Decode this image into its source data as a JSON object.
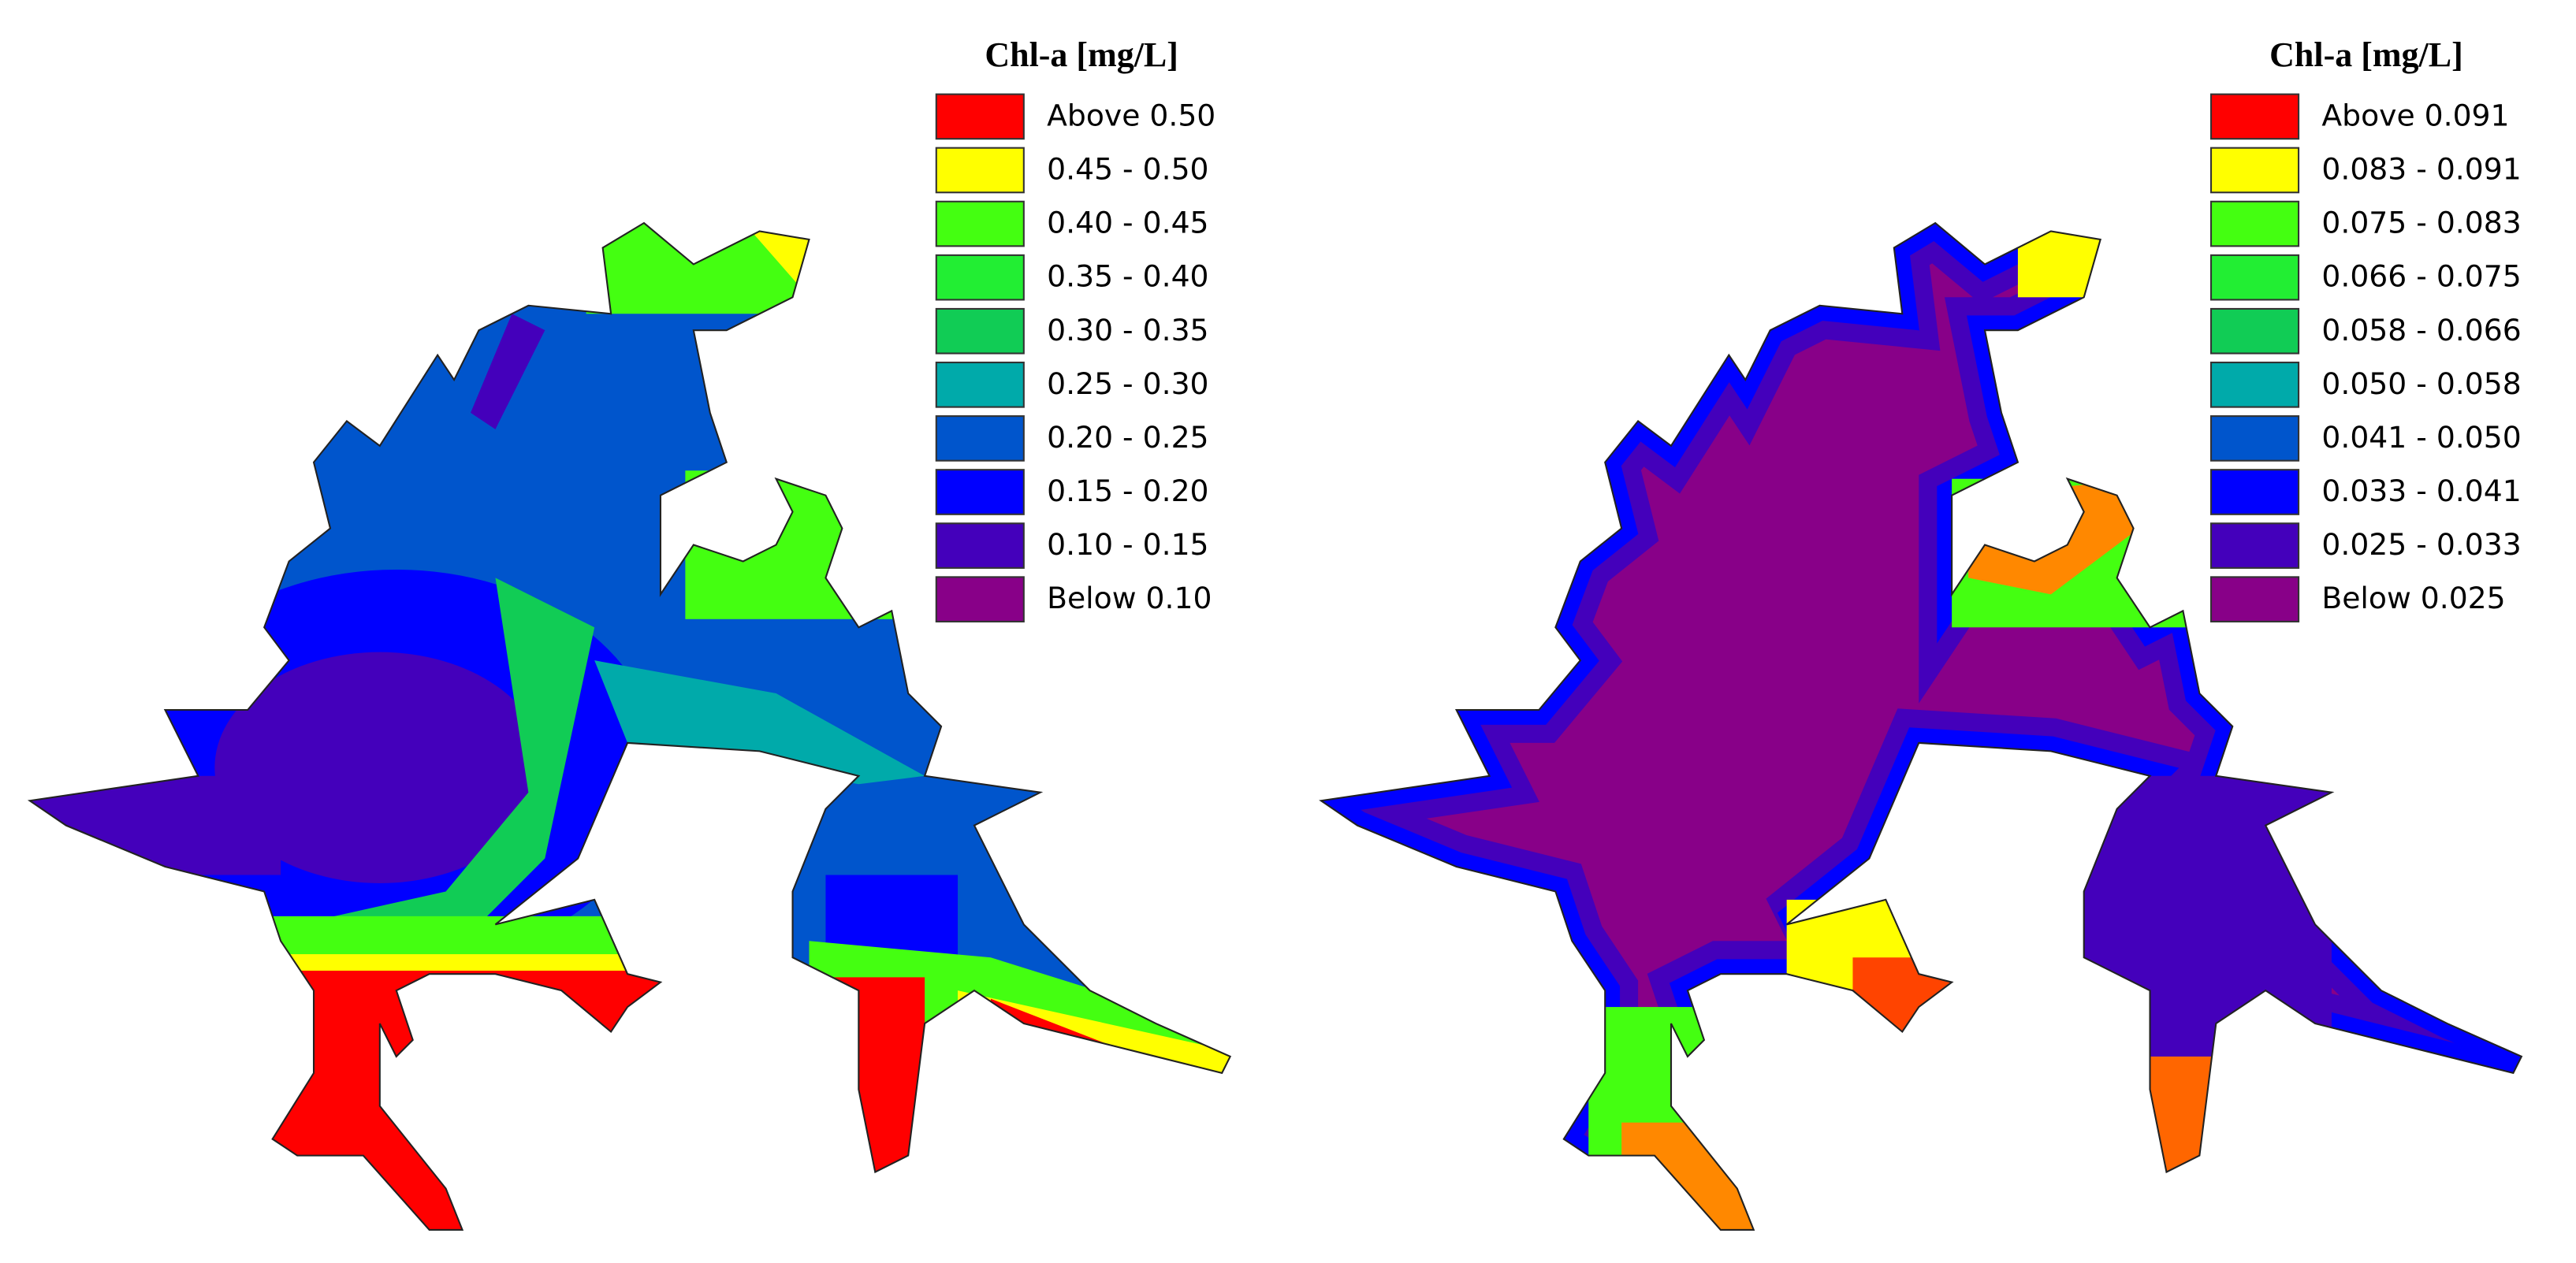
{
  "panels": [
    {
      "legend": {
        "title": "Chl-a [mg/L]",
        "items": [
          {
            "label": "Above 0.50",
            "color": "#ff0000"
          },
          {
            "label": "0.45 - 0.50",
            "color": "#ffff00"
          },
          {
            "label": "0.40 - 0.45",
            "color": "#44ff11"
          },
          {
            "label": "0.35 - 0.40",
            "color": "#22ee33"
          },
          {
            "label": "0.30 - 0.35",
            "color": "#11cc55"
          },
          {
            "label": "0.25 - 0.30",
            "color": "#00aaaa"
          },
          {
            "label": "0.20 - 0.25",
            "color": "#0055cc"
          },
          {
            "label": "0.15 - 0.20",
            "color": "#0000ff"
          },
          {
            "label": "0.10 - 0.15",
            "color": "#4400bb"
          },
          {
            "label": "Below 0.10",
            "color": "#880088"
          }
        ]
      }
    },
    {
      "legend": {
        "title": "Chl-a [mg/L]",
        "items": [
          {
            "label": "Above 0.091",
            "color": "#ff0000"
          },
          {
            "label": "0.083 - 0.091",
            "color": "#ffff00"
          },
          {
            "label": "0.075 - 0.083",
            "color": "#44ff11"
          },
          {
            "label": "0.066 - 0.075",
            "color": "#22ee33"
          },
          {
            "label": "0.058 - 0.066",
            "color": "#11cc55"
          },
          {
            "label": "0.050 - 0.058",
            "color": "#00aaaa"
          },
          {
            "label": "0.041 - 0.050",
            "color": "#0055cc"
          },
          {
            "label": "0.033 - 0.041",
            "color": "#0000ff"
          },
          {
            "label": "0.025 - 0.033",
            "color": "#4400bb"
          },
          {
            "label": "Below 0.025",
            "color": "#880088"
          }
        ]
      }
    }
  ]
}
